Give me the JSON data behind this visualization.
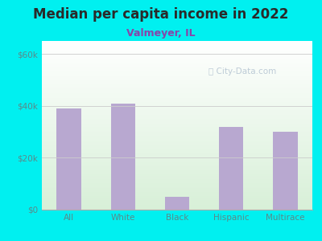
{
  "title": "Median per capita income in 2022",
  "subtitle": "Valmeyer, IL",
  "categories": [
    "All",
    "White",
    "Black",
    "Hispanic",
    "Multirace"
  ],
  "values": [
    39000,
    41000,
    5000,
    32000,
    30000
  ],
  "bar_color": "#b8a8d0",
  "background_outer": "#00f0f0",
  "title_color": "#2a2a2a",
  "subtitle_color": "#8844aa",
  "tick_label_color": "#5a8a8a",
  "ylabel_ticks": [
    0,
    20000,
    40000,
    60000
  ],
  "ylabel_labels": [
    "$0",
    "$20k",
    "$40k",
    "$60k"
  ],
  "ylim": [
    0,
    65000
  ],
  "watermark": "City-Data.com"
}
